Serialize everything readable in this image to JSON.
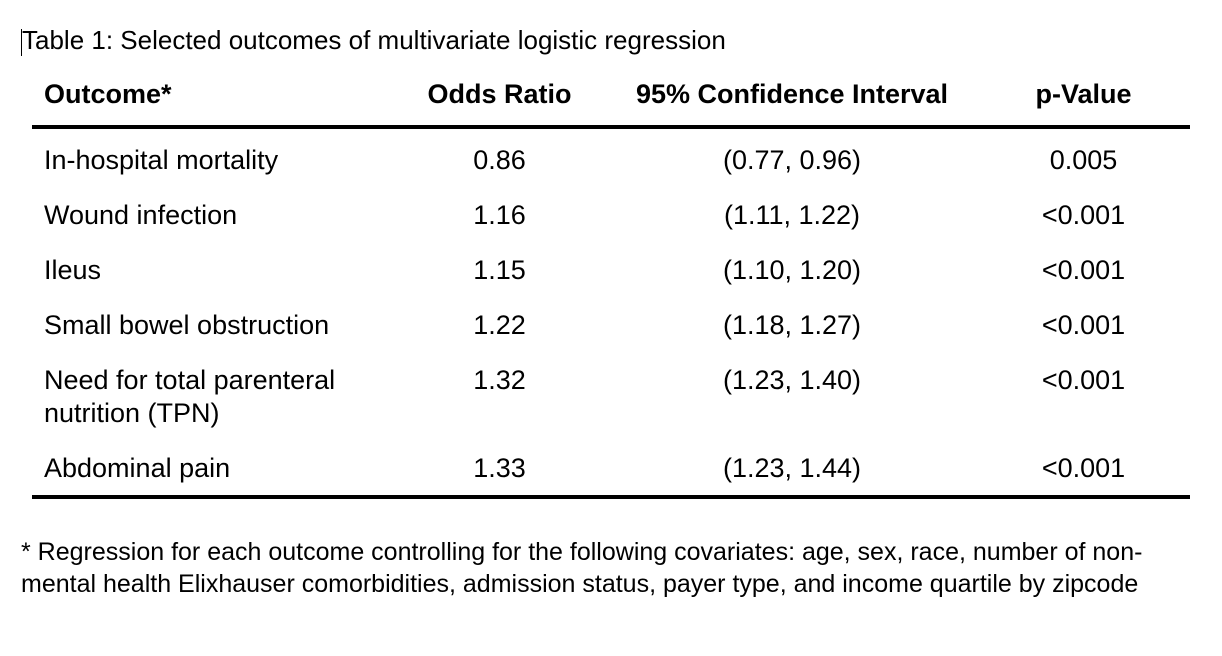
{
  "caption": "Table 1: Selected outcomes of multivariate logistic regression",
  "table": {
    "headers": {
      "outcome": "Outcome*",
      "odds_ratio": "Odds Ratio",
      "ci": "95% Confidence Interval",
      "p_value": "p-Value"
    },
    "rows": [
      {
        "outcome": "In-hospital mortality",
        "odds_ratio": "0.86",
        "ci": "(0.77, 0.96)",
        "p_value": "0.005"
      },
      {
        "outcome": "Wound infection",
        "odds_ratio": "1.16",
        "ci": "(1.11, 1.22)",
        "p_value": "<0.001"
      },
      {
        "outcome": "Ileus",
        "odds_ratio": "1.15",
        "ci": "(1.10, 1.20)",
        "p_value": "<0.001"
      },
      {
        "outcome": "Small bowel obstruction",
        "odds_ratio": "1.22",
        "ci": "(1.18, 1.27)",
        "p_value": "<0.001"
      },
      {
        "outcome": "Need for total parenteral nutrition (TPN)",
        "odds_ratio": "1.32",
        "ci": "(1.23, 1.40)",
        "p_value": "<0.001"
      },
      {
        "outcome": "Abdominal pain",
        "odds_ratio": "1.33",
        "ci": "(1.23, 1.44)",
        "p_value": "<0.001"
      }
    ]
  },
  "footnote": "* Regression for each outcome controlling for the following covariates: age, sex, race, number of non-mental health Elixhauser comorbidities, admission status, payer type, and income quartile by zipcode"
}
